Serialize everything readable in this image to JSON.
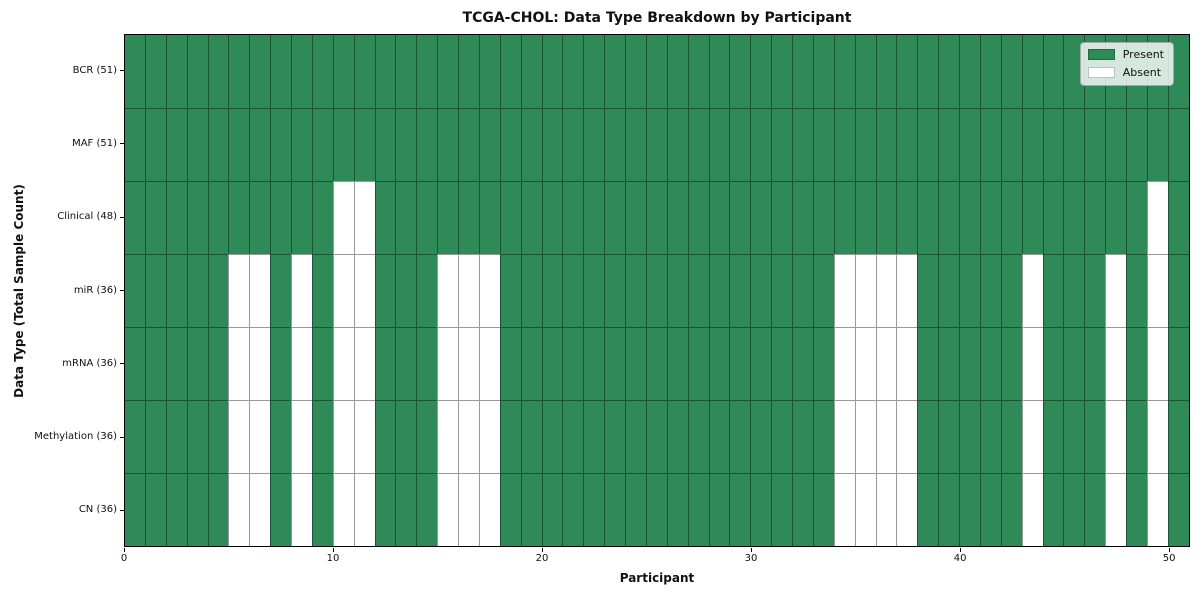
{
  "chart_data": {
    "type": "heatmap",
    "title": "TCGA-CHOL: Data Type Breakdown by Participant",
    "xlabel": "Participant",
    "ylabel": "Data Type (Total Sample Count)",
    "x_ticks": [
      0,
      10,
      20,
      30,
      40,
      50
    ],
    "x_range": [
      0,
      51
    ],
    "n_participants": 51,
    "grid": true,
    "legend_position": "upper right",
    "legend": [
      {
        "label": "Present",
        "color": "#2e8b57"
      },
      {
        "label": "Absent",
        "color": "#ffffff"
      }
    ],
    "colors": {
      "present": "#2e8b57",
      "absent": "#ffffff"
    },
    "rows": [
      {
        "label": "BCR (51)",
        "short": "bcr",
        "data_type": "BCR",
        "total_sample_count": 51,
        "absent_participants": []
      },
      {
        "label": "MAF (51)",
        "short": "maf",
        "data_type": "MAF",
        "total_sample_count": 51,
        "absent_participants": []
      },
      {
        "label": "Clinical (48)",
        "short": "clinical",
        "data_type": "Clinical",
        "total_sample_count": 48,
        "absent_participants": [
          10,
          11,
          49
        ]
      },
      {
        "label": "miR (36)",
        "short": "mir",
        "data_type": "miR",
        "total_sample_count": 36,
        "absent_participants": [
          5,
          6,
          8,
          10,
          11,
          15,
          16,
          17,
          34,
          35,
          36,
          37,
          43,
          47,
          49
        ]
      },
      {
        "label": "mRNA (36)",
        "short": "mrna",
        "data_type": "mRNA",
        "total_sample_count": 36,
        "absent_participants": [
          5,
          6,
          8,
          10,
          11,
          15,
          16,
          17,
          34,
          35,
          36,
          37,
          43,
          47,
          49
        ]
      },
      {
        "label": "Methylation (36)",
        "short": "methylation",
        "data_type": "Methylation",
        "total_sample_count": 36,
        "absent_participants": [
          5,
          6,
          8,
          10,
          11,
          15,
          16,
          17,
          34,
          35,
          36,
          37,
          43,
          47,
          49
        ]
      },
      {
        "label": "CN (36)",
        "short": "cn",
        "data_type": "CN",
        "total_sample_count": 36,
        "absent_participants": [
          5,
          6,
          8,
          10,
          11,
          15,
          16,
          17,
          34,
          35,
          36,
          37,
          43,
          47,
          49
        ]
      }
    ]
  }
}
